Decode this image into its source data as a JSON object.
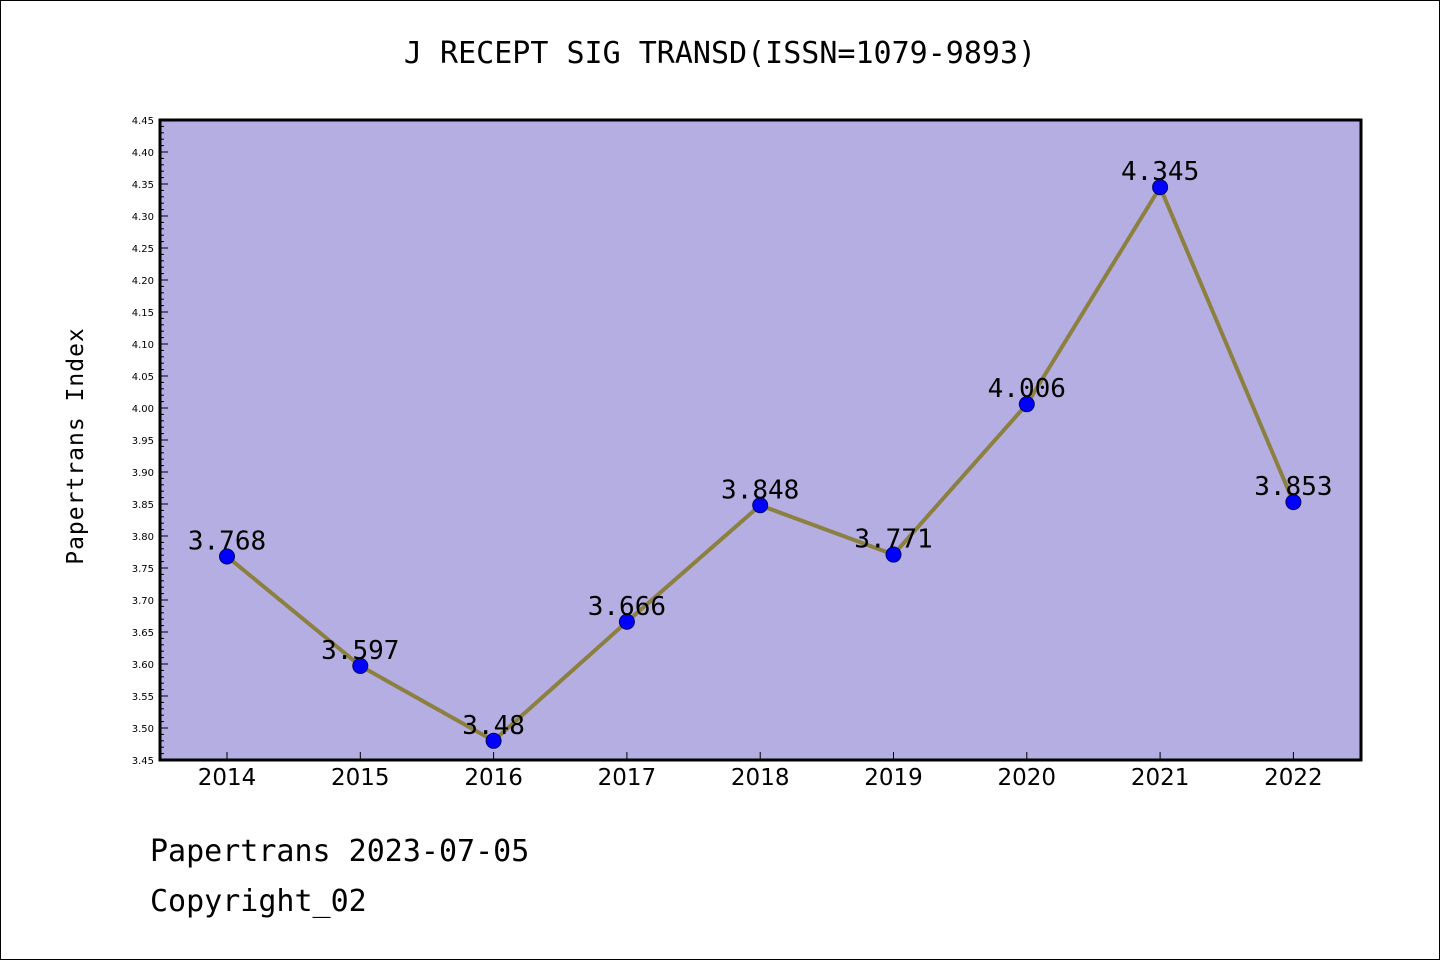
{
  "title": "J RECEPT SIG TRANSD(ISSN=1079-9893)",
  "footer": {
    "date_line": "Papertrans 2023-07-05",
    "copyright": "Copyright_02"
  },
  "colors": {
    "plot_background": "#b5aee2",
    "line": "#8c8040",
    "marker": "#0000ff"
  },
  "chart_data": {
    "type": "line",
    "title": "J RECEPT SIG TRANSD(ISSN=1079-9893)",
    "xlabel": "",
    "ylabel": "Papertrans Index",
    "categories": [
      "2014",
      "2015",
      "2016",
      "2017",
      "2018",
      "2019",
      "2020",
      "2021",
      "2022"
    ],
    "series": [
      {
        "values": [
          3.768,
          3.597,
          3.48,
          3.666,
          3.848,
          3.771,
          4.006,
          4.345,
          3.853
        ],
        "labels": [
          "3.768",
          "3.597",
          "3.48",
          "3.666",
          "3.848",
          "3.771",
          "4.006",
          "4.345",
          "3.853"
        ]
      }
    ],
    "ylim": [
      3.45,
      4.45
    ],
    "yticks": [
      "3.45",
      "3.50",
      "3.55",
      "3.60",
      "3.65",
      "3.70",
      "3.75",
      "3.80",
      "3.85",
      "3.90",
      "3.95",
      "4.00",
      "4.05",
      "4.10",
      "4.15",
      "4.20",
      "4.25",
      "4.30",
      "4.35",
      "4.40",
      "4.45"
    ],
    "grid": false,
    "legend": "none"
  }
}
